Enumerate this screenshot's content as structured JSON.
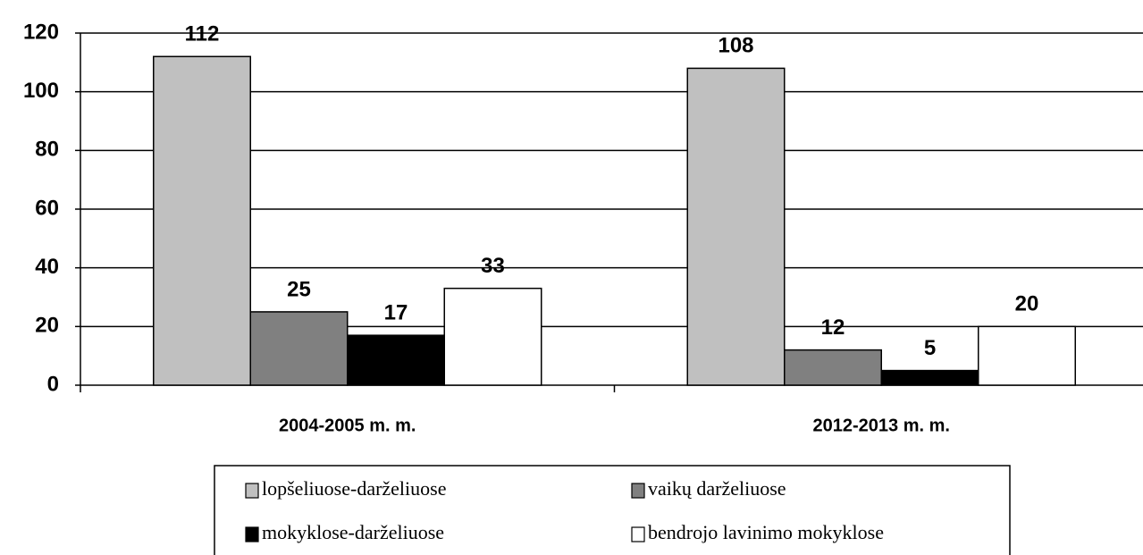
{
  "chart_data": {
    "type": "bar",
    "categories": [
      "2004-2005 m. m.",
      "2012-2013 m. m."
    ],
    "series": [
      {
        "name": "lopšeliuose-darželiuose",
        "color": "#c0c0c0",
        "values": [
          112,
          108
        ]
      },
      {
        "name": "vaikų darželiuose",
        "color": "#808080",
        "values": [
          25,
          12
        ]
      },
      {
        "name": "mokyklose-darželiuose",
        "color": "#000000",
        "values": [
          17,
          5
        ]
      },
      {
        "name": "bendrojo lavinimo mokyklose",
        "color": "#ffffff",
        "values": [
          33,
          20
        ]
      }
    ],
    "ylim": [
      0,
      120
    ],
    "yticks": [
      0,
      20,
      40,
      60,
      80,
      100,
      120
    ],
    "grid": true,
    "legend": "bottom"
  }
}
